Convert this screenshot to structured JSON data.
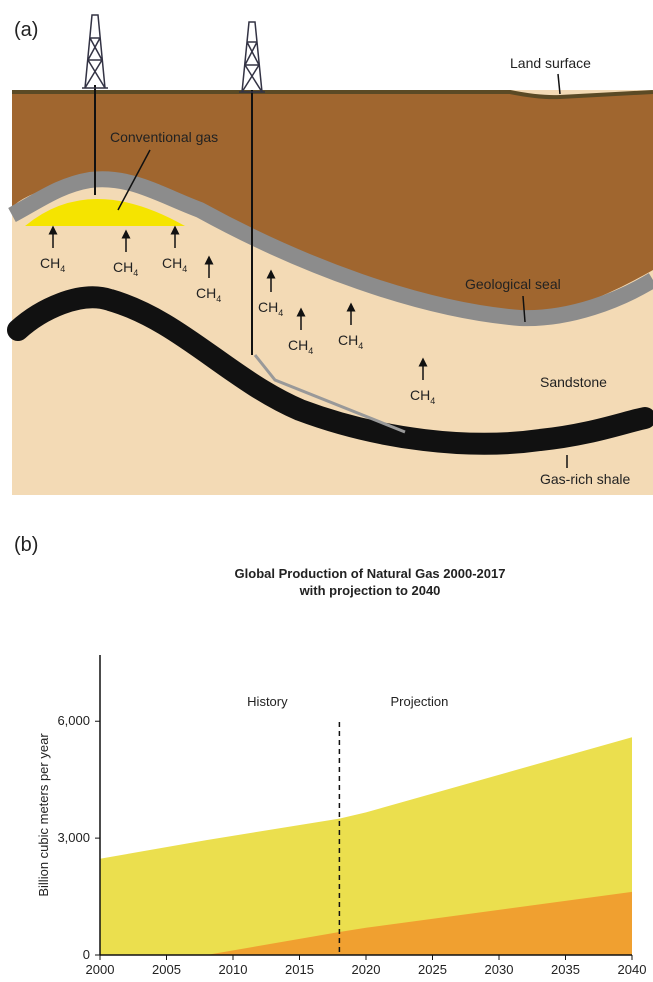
{
  "panels": {
    "a": "(a)",
    "b": "(b)"
  },
  "diagram": {
    "land_surface": "Land surface",
    "conventional_gas": "Conventional gas",
    "geological_seal": "Geological seal",
    "sandstone": "Sandstone",
    "shale": "Gas-rich shale",
    "methane_labels": [
      {
        "main": "CH",
        "sub": "4"
      },
      {
        "main": "CH",
        "sub": "4"
      },
      {
        "main": "CH",
        "sub": "4"
      },
      {
        "main": "CH",
        "sub": "4"
      },
      {
        "main": "CH",
        "sub": "4"
      },
      {
        "main": "CH",
        "sub": "4"
      },
      {
        "main": "CH",
        "sub": "4"
      },
      {
        "main": "CH",
        "sub": "4"
      }
    ]
  },
  "chart_data": {
    "type": "area",
    "title": "Global Production of Natural Gas 2000-2017",
    "subtitle": "with projection to 2040",
    "y_label": "Billion cubic meters per year",
    "x": [
      2000,
      2008,
      2018,
      2020,
      2040
    ],
    "series": [
      {
        "color": "#ebdf4e",
        "values": [
          2470,
          2950,
          3500,
          3660,
          5590
        ]
      },
      {
        "color": "#f0a030",
        "values": [
          0,
          0,
          590,
          700,
          1620
        ]
      }
    ],
    "xlim": [
      2000,
      2040
    ],
    "xticks": [
      2000,
      2005,
      2010,
      2015,
      2020,
      2025,
      2030,
      2035,
      2040
    ],
    "ylim": [
      0,
      7700
    ],
    "yticks": [
      0,
      {
        "value": 3000,
        "label": "3,000"
      },
      {
        "value": 6000,
        "label": "6,000"
      }
    ],
    "annotations": {
      "history": "History",
      "projection": "Projection",
      "divider_x": 2018
    }
  }
}
